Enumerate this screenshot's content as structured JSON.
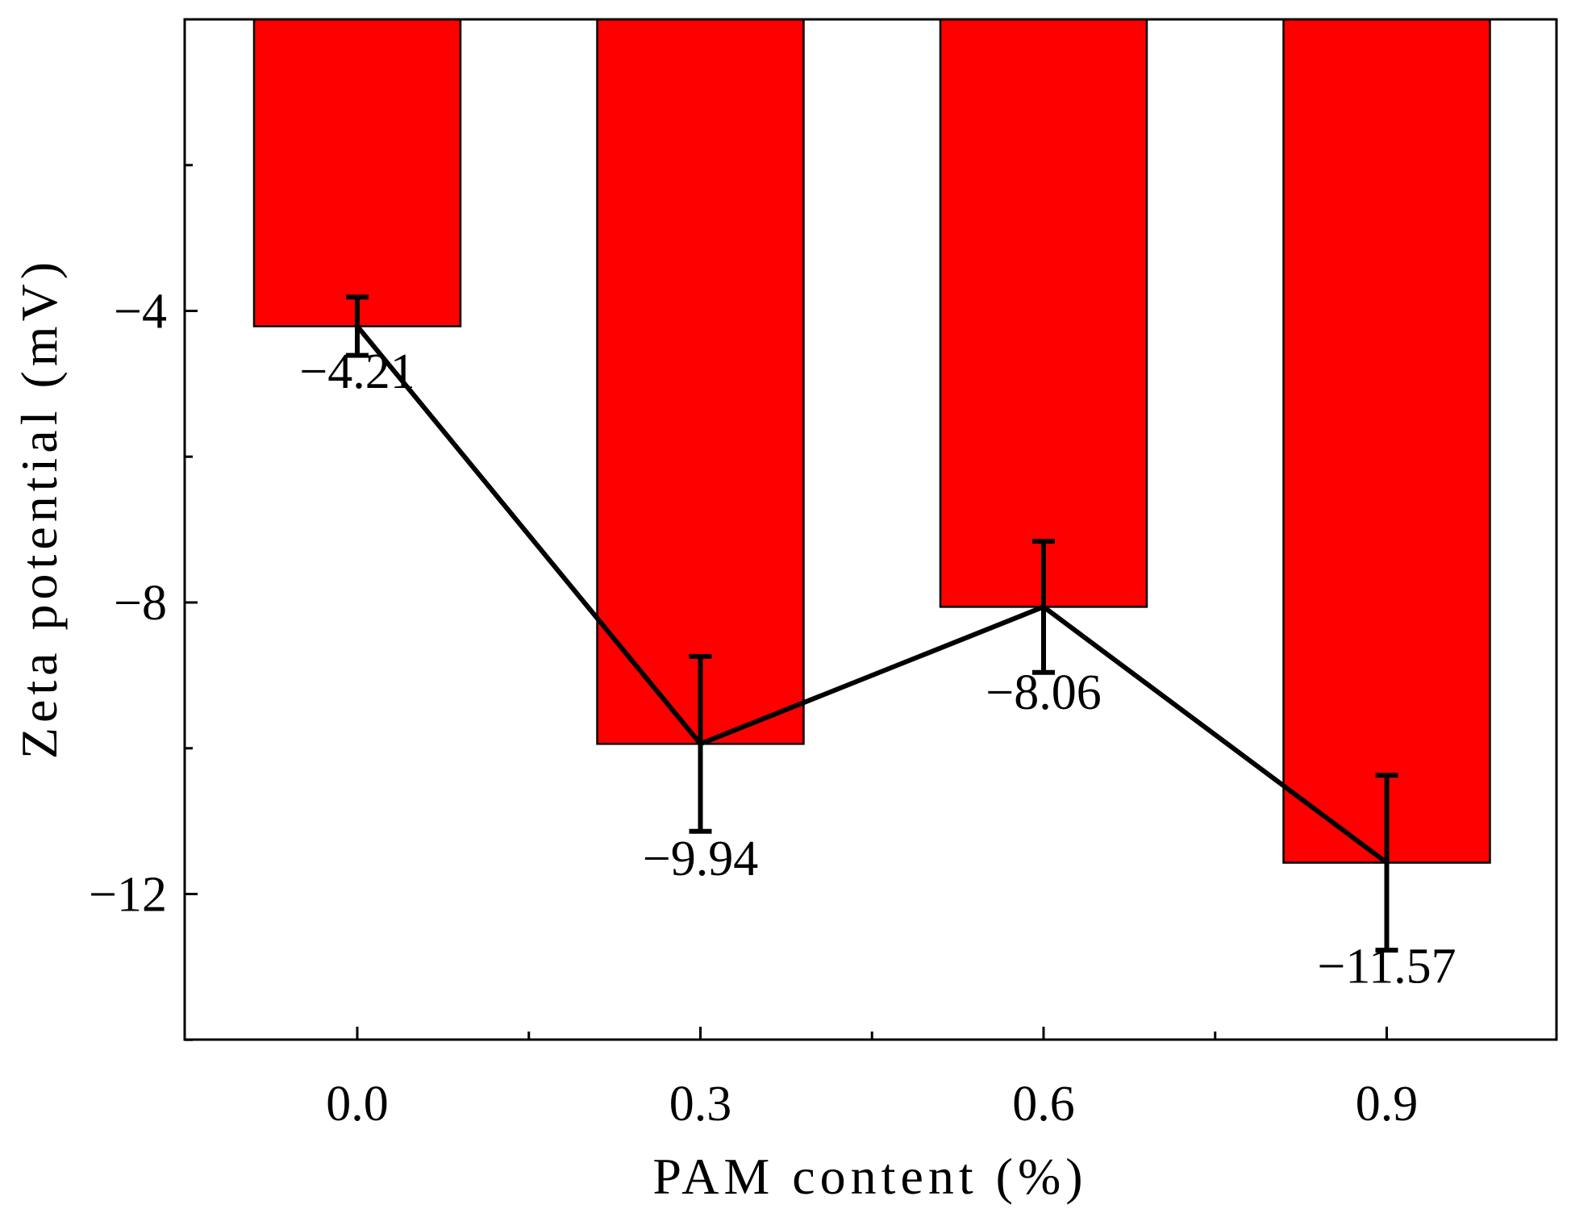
{
  "chart_data": {
    "type": "bar",
    "categories": [
      "0.0",
      "0.3",
      "0.6",
      "0.9"
    ],
    "x": [
      0.0,
      0.3,
      0.6,
      0.9
    ],
    "values": [
      -4.21,
      -9.94,
      -8.06,
      -11.57
    ],
    "errors": [
      0.4,
      1.2,
      0.9,
      1.2
    ],
    "data_labels": [
      "-4.21",
      "-9.94",
      "-8.06",
      "-11.57"
    ],
    "xlabel": "PAM content (%)",
    "ylabel": "Zeta potential (mV)",
    "ylim": [
      -14,
      0
    ],
    "yticks": [
      -4,
      -8,
      -12
    ],
    "ytick_labels": [
      "-4",
      "-8",
      "-12"
    ],
    "overlay": "line connecting bar values with error bars",
    "colors": {
      "bar": "#ff0000",
      "line": "#000000",
      "axis": "#000000"
    },
    "grid": false,
    "legend": "none"
  }
}
